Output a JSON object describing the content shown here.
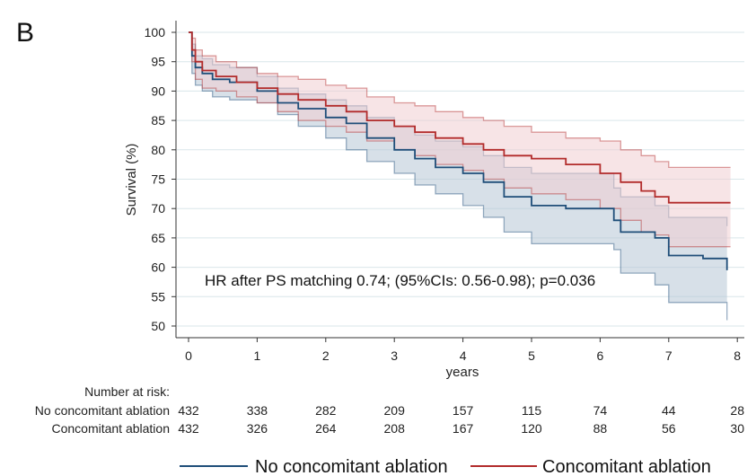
{
  "panel_label": "B",
  "annotation": "HR after PS matching 0.74; (95%CIs: 0.56-0.98); p=0.036",
  "risk_table": {
    "title": "Number at risk:",
    "rows": [
      {
        "label": "No concomitant ablation",
        "values": [
          "432",
          "338",
          "282",
          "209",
          "157",
          "115",
          "74",
          "44",
          "28"
        ]
      },
      {
        "label": "Concomitant ablation",
        "values": [
          "432",
          "326",
          "264",
          "208",
          "167",
          "120",
          "88",
          "56",
          "30"
        ]
      }
    ]
  },
  "legend": [
    {
      "label": "No concomitant ablation",
      "color": "#1f4e79"
    },
    {
      "label": "Concomitant ablation",
      "color": "#b22b2b"
    }
  ],
  "chart_data": {
    "type": "line",
    "xlabel": "years",
    "ylabel": "Survival (%)",
    "xlim": [
      0,
      8
    ],
    "ylim": [
      50,
      100
    ],
    "x_ticks": [
      0,
      1,
      2,
      3,
      4,
      5,
      6,
      7,
      8
    ],
    "y_ticks": [
      50,
      55,
      60,
      65,
      70,
      75,
      80,
      85,
      90,
      95,
      100
    ],
    "grid": "horizontal",
    "series": [
      {
        "name": "No concomitant ablation",
        "color": "#1f4e79",
        "band_color": "#b7c7d6",
        "x": [
          0,
          0.05,
          0.1,
          0.2,
          0.35,
          0.6,
          1.0,
          1.3,
          1.6,
          2.0,
          2.3,
          2.6,
          3.0,
          3.3,
          3.6,
          4.0,
          4.3,
          4.6,
          5.0,
          5.5,
          6.0,
          6.2,
          6.3,
          6.8,
          7.0,
          7.5,
          7.85
        ],
        "y": [
          100,
          96,
          94,
          93,
          92,
          91.5,
          90,
          88,
          87,
          85.5,
          84.5,
          82,
          80,
          78.5,
          77,
          76,
          74.5,
          72,
          70.5,
          70,
          70,
          68,
          66,
          65,
          62,
          61.5,
          59.5
        ],
        "lower": [
          100,
          93,
          91,
          90,
          89,
          88.5,
          88,
          86,
          84,
          82,
          80,
          78,
          76,
          74,
          72.5,
          70.5,
          68.5,
          66,
          64,
          64,
          64,
          63,
          59,
          57,
          54,
          54,
          51
        ],
        "upper": [
          100,
          98,
          96,
          95.5,
          94.5,
          94,
          92.5,
          90.5,
          89.5,
          88.5,
          87.5,
          85.5,
          84,
          82.5,
          81.5,
          80.5,
          79,
          77,
          76,
          76,
          76,
          73.5,
          72,
          70.5,
          68.5,
          68.5,
          67
        ]
      },
      {
        "name": "Concomitant ablation",
        "color": "#b22b2b",
        "band_color": "#f1cdd1",
        "x": [
          0,
          0.05,
          0.1,
          0.2,
          0.4,
          0.7,
          1.0,
          1.3,
          1.6,
          2.0,
          2.3,
          2.6,
          3.0,
          3.3,
          3.6,
          4.0,
          4.3,
          4.6,
          5.0,
          5.5,
          6.0,
          6.3,
          6.6,
          6.8,
          7.0,
          7.5,
          7.9
        ],
        "y": [
          100,
          97,
          95,
          93.5,
          92.5,
          91.5,
          90.5,
          89.5,
          88.5,
          87.5,
          86.5,
          85,
          84,
          83,
          82,
          81,
          80,
          79,
          78.5,
          77.5,
          76,
          74.5,
          73,
          72,
          71,
          71,
          71
        ],
        "lower": [
          100,
          95,
          92,
          90.5,
          90,
          89,
          88,
          86.5,
          85,
          84,
          83,
          81.5,
          80,
          79,
          77.5,
          76.5,
          75,
          73.5,
          72.5,
          71.5,
          70,
          68,
          66,
          65.5,
          63.5,
          63.5,
          63.5
        ],
        "upper": [
          100,
          99,
          97,
          96,
          95,
          94,
          93,
          92.5,
          92,
          91,
          90.5,
          89,
          88,
          87.5,
          86.5,
          85.5,
          85,
          84,
          83,
          82,
          81.5,
          80,
          79,
          78,
          77,
          77,
          77
        ]
      }
    ]
  }
}
